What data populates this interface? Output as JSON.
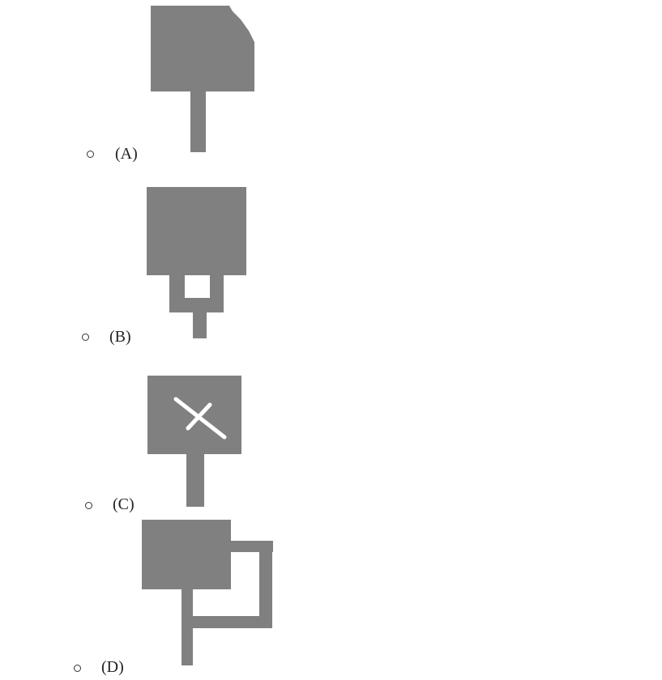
{
  "options": [
    {
      "id": "A",
      "label": "(A)",
      "selected": false,
      "figure": "bolt-square-clipped-corner-with-stem-icon"
    },
    {
      "id": "B",
      "label": "(B)",
      "selected": false,
      "figure": "square-with-hollow-bracket-and-stem-icon"
    },
    {
      "id": "C",
      "label": "(C)",
      "selected": false,
      "figure": "square-with-white-x-and-stem-icon"
    },
    {
      "id": "D",
      "label": "(D)",
      "selected": false,
      "figure": "square-with-side-loop-and-stem-icon"
    }
  ],
  "colors": {
    "figure_fill": "#808080",
    "background": "#ffffff",
    "text": "#222222"
  }
}
